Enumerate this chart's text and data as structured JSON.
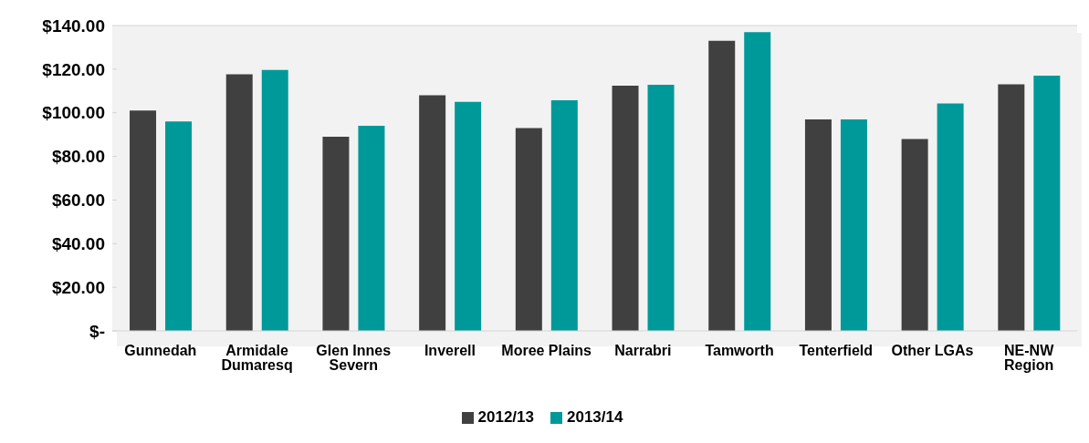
{
  "chart_data": {
    "type": "bar",
    "categories": [
      "Gunnedah",
      "Armidale Dumaresq",
      "Glen Innes Severn",
      "Inverell",
      "Moree Plains",
      "Narrabri",
      "Tamworth",
      "Tenterfield",
      "Other LGAs",
      "NE-NW Region"
    ],
    "series": [
      {
        "name": "2012/13",
        "color": "#404040",
        "values": [
          101,
          117.6,
          89,
          108,
          93,
          112.4,
          133,
          97,
          88,
          113
        ]
      },
      {
        "name": "2013/14",
        "color": "#009999",
        "values": [
          96,
          119.6,
          94,
          105,
          105.7,
          112.8,
          137,
          97,
          104.3,
          117
        ]
      }
    ],
    "ylim": [
      0,
      140
    ],
    "yticks": [
      {
        "value": 0,
        "label": "$-"
      },
      {
        "value": 20,
        "label": "$20.00"
      },
      {
        "value": 40,
        "label": "$40.00"
      },
      {
        "value": 60,
        "label": "$60.00"
      },
      {
        "value": 80,
        "label": "$80.00"
      },
      {
        "value": 100,
        "label": "$100.00"
      },
      {
        "value": 120,
        "label": "$120.00"
      },
      {
        "value": 140,
        "label": "$140.00"
      }
    ],
    "grid": "y",
    "legend": "bottom"
  }
}
